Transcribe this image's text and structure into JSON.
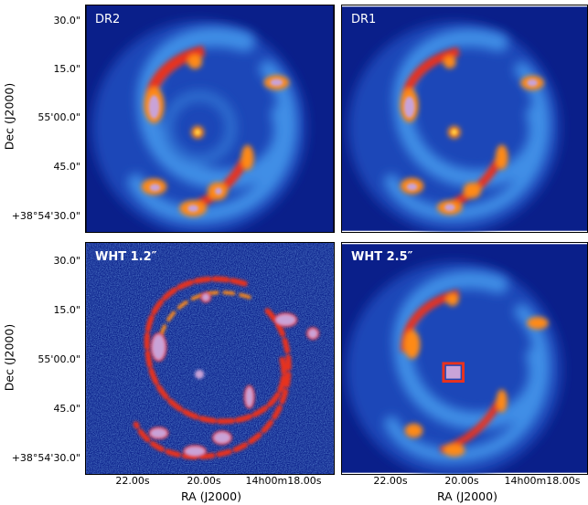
{
  "panels": [
    {
      "label": "DR2",
      "style": "smooth"
    },
    {
      "label": "DR1",
      "style": "smooth"
    },
    {
      "label": "WHT 1.2″",
      "style": "noisy"
    },
    {
      "label": "WHT 2.5″",
      "style": "smooth"
    }
  ],
  "yticks": [
    "30.0\"",
    "15.0\"",
    "55'00.0\"",
    "45.0\"",
    "+38°54'30.0\""
  ],
  "xticks": [
    "22.00s",
    "20.00s",
    "14h00m18.00s"
  ],
  "ylabel": "Dec (J2000)",
  "xlabel": "RA (J2000)",
  "colors": {
    "background": "#0a1f8a",
    "arm_low": "#2f7de0",
    "arm_mid": "#5fb6f0",
    "hot1": "#e8321e",
    "hot2": "#ff8a18",
    "hot3": "#ffd44a",
    "core": "#c9a3d8"
  }
}
